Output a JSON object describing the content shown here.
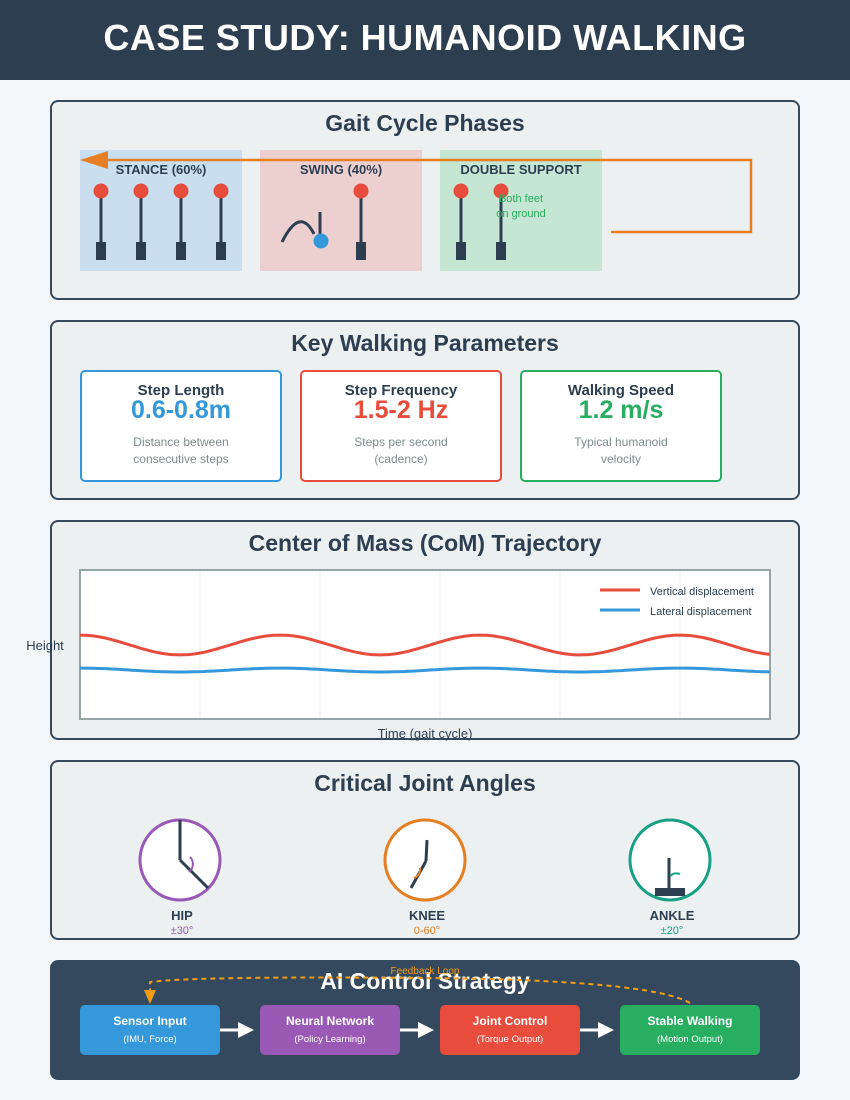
{
  "header": {
    "title": "CASE STUDY: HUMANOID WALKING"
  },
  "gait": {
    "title": "Gait Cycle Phases",
    "stance": {
      "label": "STANCE (60%)",
      "color": "#c9dff0"
    },
    "swing": {
      "label": "SWING (40%)",
      "color": "#eccfcf"
    },
    "double_support": {
      "label": "DOUBLE SUPPORT",
      "note_line1": "Both feet",
      "note_line2": "on ground",
      "color": "#c6e6d4"
    },
    "arrow_color": "#e67e22"
  },
  "parameters": {
    "title": "Key Walking Parameters",
    "cards": [
      {
        "title": "Step Length",
        "value": "0.6-0.8m",
        "desc_line1": "Distance between",
        "desc_line2": "consecutive steps",
        "color": "#3498db"
      },
      {
        "title": "Step Frequency",
        "value": "1.5-2 Hz",
        "desc_line1": "Steps per second",
        "desc_line2": "(cadence)",
        "color": "#e74c3c"
      },
      {
        "title": "Walking Speed",
        "value": "1.2 m/s",
        "desc_line1": "Typical humanoid",
        "desc_line2": "velocity",
        "color": "#27ae60"
      }
    ]
  },
  "com": {
    "title": "Center of Mass (CoM) Trajectory",
    "ylabel": "Height",
    "xlabel": "Time (gait cycle)",
    "legend": {
      "vertical": "Vertical displacement",
      "lateral": "Lateral displacement"
    }
  },
  "chart_data": {
    "type": "line",
    "title": "Center of Mass (CoM) Trajectory",
    "xlabel": "Time (gait cycle)",
    "ylabel": "Height",
    "grid": true,
    "legend_position": "top-right",
    "x_range": [
      0,
      1
    ],
    "y_range": [
      0,
      1
    ],
    "series": [
      {
        "name": "Vertical displacement",
        "color": "#e74c3c",
        "baseline": 0.5,
        "amplitude": 0.066,
        "cycles": 3.45,
        "phase": 0.25
      },
      {
        "name": "Lateral displacement",
        "color": "#3498db",
        "baseline": 0.333,
        "amplitude": 0.013,
        "cycles": 3.45,
        "phase": 0.25
      }
    ]
  },
  "joints": {
    "title": "Critical Joint Angles",
    "items": [
      {
        "name": "HIP",
        "range": "±30°",
        "color": "#9b59b6"
      },
      {
        "name": "KNEE",
        "range": "0-60°",
        "color": "#e67e22"
      },
      {
        "name": "ANKLE",
        "range": "±20°",
        "color": "#16a085"
      }
    ]
  },
  "ai": {
    "title": "AI Control Strategy",
    "feedback_label": "Feedback Loop",
    "feedback_color": "#f39c12",
    "steps": [
      {
        "title": "Sensor Input",
        "sub": "(IMU, Force)",
        "color": "#3498db"
      },
      {
        "title": "Neural Network",
        "sub": "(Policy Learning)",
        "color": "#9b59b6"
      },
      {
        "title": "Joint Control",
        "sub": "(Torque Output)",
        "color": "#e74c3c"
      },
      {
        "title": "Stable Walking",
        "sub": "(Motion Output)",
        "color": "#27ae60"
      }
    ]
  }
}
